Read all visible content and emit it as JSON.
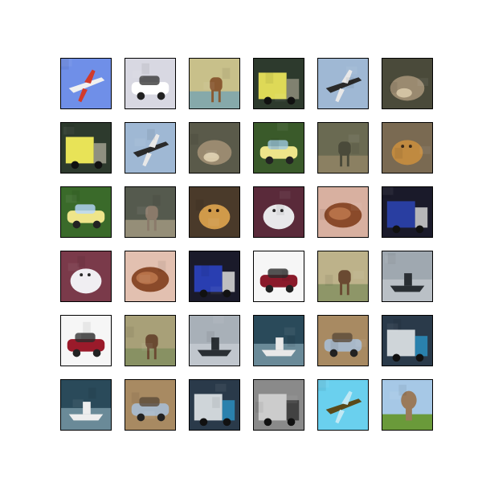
{
  "figure": {
    "rows": 6,
    "cols": 6,
    "tiles": [
      {
        "label": "airplane",
        "colors": {
          "bg": "#6f8fe8",
          "fg": "#f0f0f0",
          "accent": "#d23a2a"
        }
      },
      {
        "label": "car",
        "colors": {
          "bg": "#d8d8e2",
          "fg": "#ffffff",
          "accent": "#3a3a3a"
        }
      },
      {
        "label": "deer",
        "colors": {
          "bg": "#c8c08a",
          "fg": "#8a5a32",
          "accent": "#6aa0b8"
        }
      },
      {
        "label": "truck",
        "colors": {
          "bg": "#2d3a2d",
          "fg": "#e8e25a",
          "accent": "#8a8a78"
        }
      },
      {
        "label": "airplane",
        "colors": {
          "bg": "#9fb8d4",
          "fg": "#2a2a2a",
          "accent": "#e8e8e8"
        }
      },
      {
        "label": "cat",
        "colors": {
          "bg": "#4a4a3a",
          "fg": "#9a8a70",
          "accent": "#d8c8a8"
        }
      },
      {
        "label": "truck",
        "colors": {
          "bg": "#2d3a2d",
          "fg": "#f2ec5a",
          "accent": "#9a9a8a"
        }
      },
      {
        "label": "airplane",
        "colors": {
          "bg": "#9fb8d4",
          "fg": "#2a2a2a",
          "accent": "#e8e8e8"
        }
      },
      {
        "label": "cat",
        "colors": {
          "bg": "#5a5a4a",
          "fg": "#9a8a70",
          "accent": "#e0d0b0"
        }
      },
      {
        "label": "car",
        "colors": {
          "bg": "#3a5a2a",
          "fg": "#eee58a",
          "accent": "#9fc8e0"
        }
      },
      {
        "label": "deer",
        "colors": {
          "bg": "#6a6a52",
          "fg": "#4a4a3a",
          "accent": "#9a8a6a"
        }
      },
      {
        "label": "dog",
        "colors": {
          "bg": "#7a6a52",
          "fg": "#c08a40",
          "accent": "#3a2a1a"
        }
      },
      {
        "label": "car",
        "colors": {
          "bg": "#3a6a2a",
          "fg": "#eee58a",
          "accent": "#b8d8ff"
        }
      },
      {
        "label": "deer",
        "colors": {
          "bg": "#555a4e",
          "fg": "#8a7a6a",
          "accent": "#b0a48a"
        }
      },
      {
        "label": "dog",
        "colors": {
          "bg": "#4a3a2a",
          "fg": "#d09a4a",
          "accent": "#2a1a10"
        }
      },
      {
        "label": "dog",
        "colors": {
          "bg": "#5a2a3a",
          "fg": "#e8e8ea",
          "accent": "#2a2a2a"
        }
      },
      {
        "label": "frog",
        "colors": {
          "bg": "#d8b0a0",
          "fg": "#8a4a2a",
          "accent": "#c07a50"
        }
      },
      {
        "label": "truck",
        "colors": {
          "bg": "#1a1a2a",
          "fg": "#2a40a8",
          "accent": "#c8c8c8"
        }
      },
      {
        "label": "dog",
        "colors": {
          "bg": "#7a3a4a",
          "fg": "#f0eef2",
          "accent": "#2a2a2a"
        }
      },
      {
        "label": "frog",
        "colors": {
          "bg": "#e2c0b0",
          "fg": "#8a4a2a",
          "accent": "#c07a50"
        }
      },
      {
        "label": "truck",
        "colors": {
          "bg": "#1a1a2a",
          "fg": "#2a40b8",
          "accent": "#d0d0d0"
        }
      },
      {
        "label": "car",
        "colors": {
          "bg": "#f6f6f6",
          "fg": "#8a1a2a",
          "accent": "#2a2a2a"
        }
      },
      {
        "label": "deer",
        "colors": {
          "bg": "#bdb28a",
          "fg": "#6a4a32",
          "accent": "#7a8a5a"
        }
      },
      {
        "label": "ship",
        "colors": {
          "bg": "#9fa8b0",
          "fg": "#2a2f34",
          "accent": "#c0c6cc"
        }
      },
      {
        "label": "car",
        "colors": {
          "bg": "#f6f6f6",
          "fg": "#9a1a2a",
          "accent": "#2a2a2a"
        }
      },
      {
        "label": "deer",
        "colors": {
          "bg": "#a8a078",
          "fg": "#6a4a32",
          "accent": "#7a8a5a"
        }
      },
      {
        "label": "ship",
        "colors": {
          "bg": "#a8b0b8",
          "fg": "#2a2f34",
          "accent": "#c6ccd2"
        }
      },
      {
        "label": "ship",
        "colors": {
          "bg": "#2a4a5a",
          "fg": "#e8e8e8",
          "accent": "#7a9aa8"
        }
      },
      {
        "label": "car",
        "colors": {
          "bg": "#a88a62",
          "fg": "#a8b8c8",
          "accent": "#5a4a3a"
        }
      },
      {
        "label": "truck",
        "colors": {
          "bg": "#2a3a4a",
          "fg": "#d8dde0",
          "accent": "#2a8ab8"
        }
      },
      {
        "label": "ship",
        "colors": {
          "bg": "#2a4a5a",
          "fg": "#eeeeee",
          "accent": "#7a9aa8"
        }
      },
      {
        "label": "car",
        "colors": {
          "bg": "#a88a62",
          "fg": "#a8b8c8",
          "accent": "#5a4a3a"
        }
      },
      {
        "label": "truck",
        "colors": {
          "bg": "#2a3a4a",
          "fg": "#d8dde0",
          "accent": "#2a8ab8"
        }
      },
      {
        "label": "truck",
        "colors": {
          "bg": "#8a8a8a",
          "fg": "#d0d0d0",
          "accent": "#3a3a3a"
        }
      },
      {
        "label": "airplane",
        "colors": {
          "bg": "#6ad0ee",
          "fg": "#5a4a1a",
          "accent": "#c0e8f4"
        }
      },
      {
        "label": "bird",
        "colors": {
          "bg": "#a6c8e6",
          "fg": "#9a7a5a",
          "accent": "#6a9a3a"
        }
      }
    ]
  }
}
